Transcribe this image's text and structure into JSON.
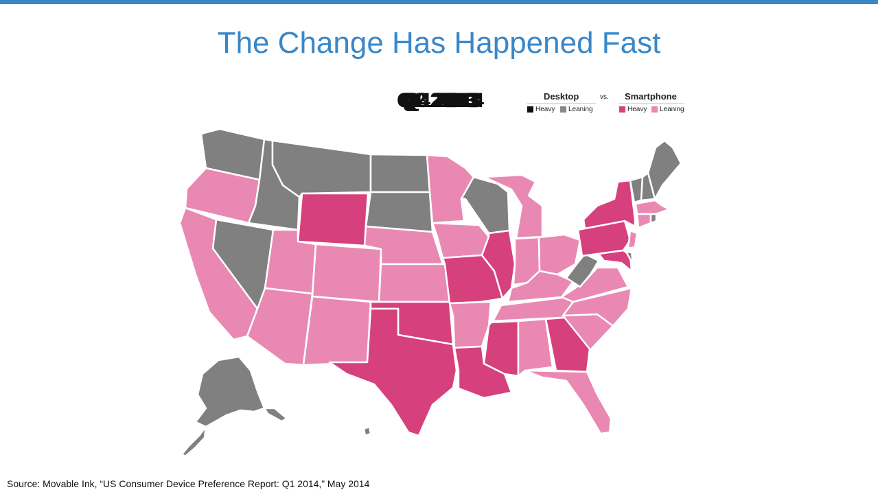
{
  "slide": {
    "title": "The Change Has Happened Fast",
    "quarter_labels": [
      "Q1 2013",
      "Q2 2013",
      "Q3 2013",
      "Q4 2013",
      "Q1 2014"
    ],
    "source": "Source: Movable Ink, “US Consumer Device Preference Report: Q1 2014,” May 2014",
    "accent_color": "#3a87c8"
  },
  "legend": {
    "desktop_title": "Desktop",
    "vs": "vs.",
    "smartphone_title": "Smartphone",
    "items": [
      {
        "label": "Heavy",
        "color": "#111111"
      },
      {
        "label": "Leaning",
        "color": "#888888"
      },
      {
        "label": "Heavy",
        "color": "#d6407c"
      },
      {
        "label": "Leaning",
        "color": "#e989b3"
      }
    ]
  },
  "map_colors": {
    "desktop_leaning": "#808080",
    "smartphone_heavy": "#d6407c",
    "smartphone_leaning": "#e989b3"
  }
}
